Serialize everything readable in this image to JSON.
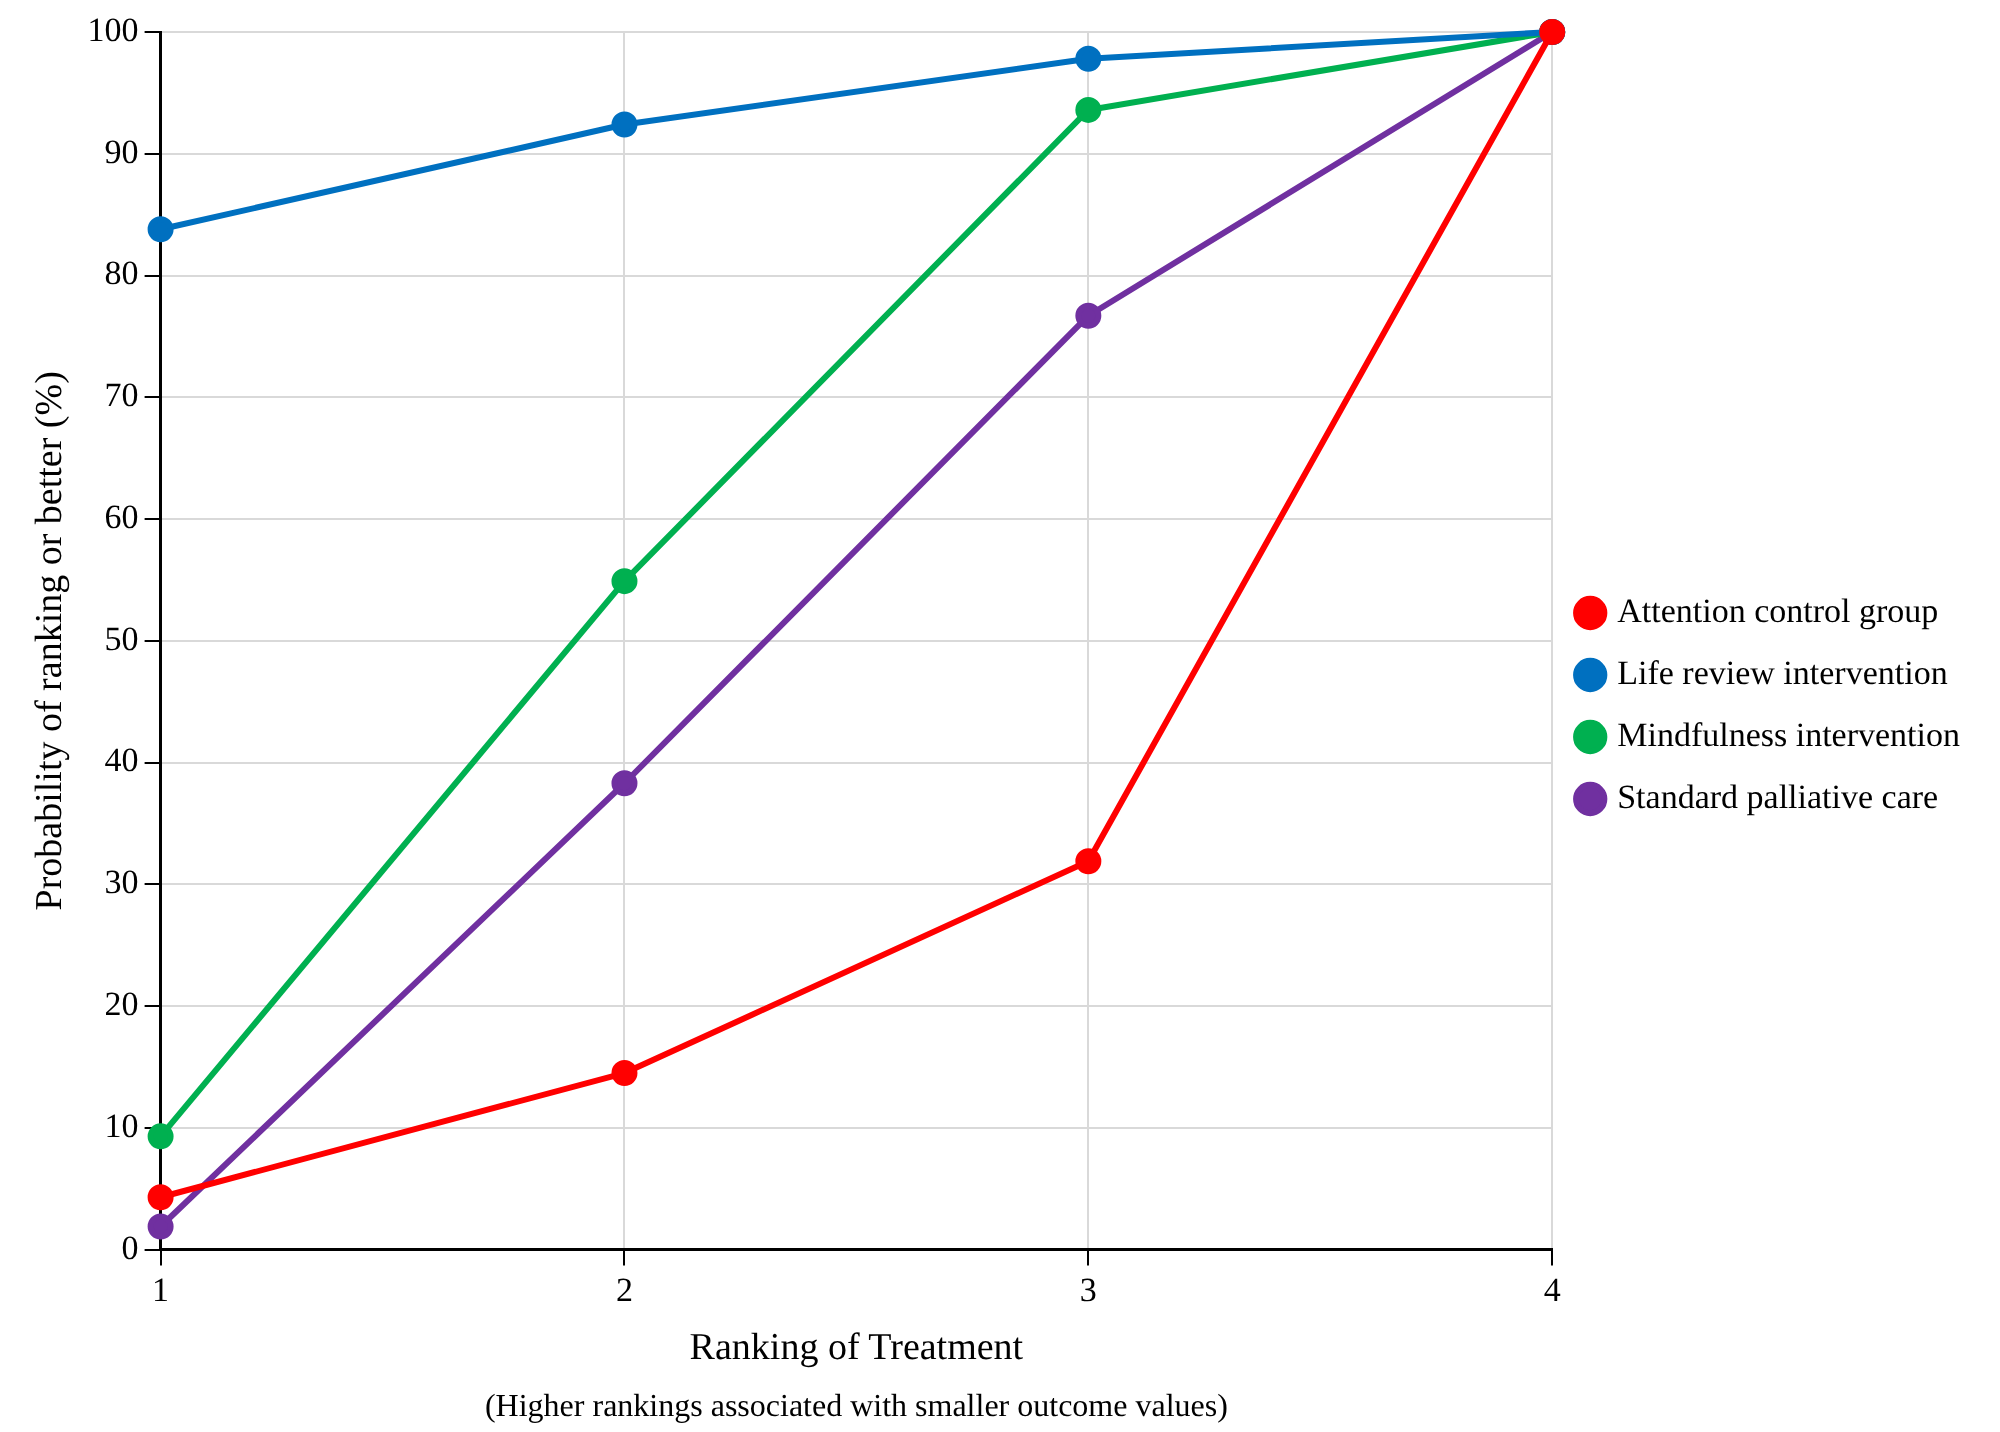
{
  "chart_data": {
    "type": "line",
    "xlabel": "Ranking of Treatment",
    "ylabel": "Probability of ranking or better (%)",
    "annotations": [
      "(Higher rankings associated with smaller outcome values)"
    ],
    "x": [
      1,
      2,
      3,
      4
    ],
    "xlim": [
      1,
      4
    ],
    "xticks": [
      1,
      2,
      3,
      4
    ],
    "ylim": [
      0,
      100
    ],
    "yticks": [
      0,
      10,
      20,
      30,
      40,
      50,
      60,
      70,
      80,
      90,
      100
    ],
    "grid": true,
    "legend": "right",
    "marker": "circle",
    "line_style": "solid",
    "series": [
      {
        "name": "Attention control group",
        "color": "#ff0000",
        "values": [
          4.3,
          14.5,
          31.9,
          100
        ]
      },
      {
        "name": "Life review intervention",
        "color": "#0070c0",
        "values": [
          83.8,
          92.4,
          97.8,
          100
        ]
      },
      {
        "name": "Mindfulness intervention",
        "color": "#00b050",
        "values": [
          9.3,
          54.9,
          93.6,
          100
        ]
      },
      {
        "name": "Standard palliative care",
        "color": "#7030a0",
        "values": [
          1.9,
          38.3,
          76.7,
          100
        ]
      }
    ]
  }
}
